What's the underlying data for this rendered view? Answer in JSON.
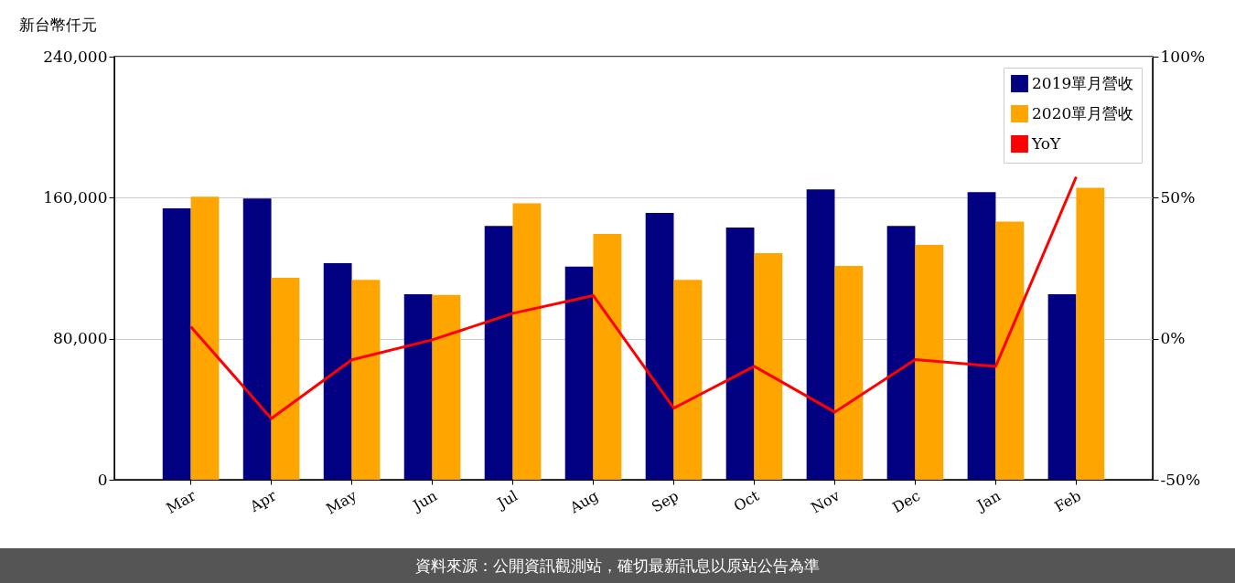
{
  "chart_data": {
    "type": "bar",
    "ylabel": "新台幣仟元",
    "categories": [
      "Mar",
      "Apr",
      "May",
      "Jun",
      "Jul",
      "Aug",
      "Sep",
      "Oct",
      "Nov",
      "Dec",
      "Jan",
      "Feb"
    ],
    "series": [
      {
        "name": "2019單月營收",
        "color": "#000080",
        "values": [
          154000,
          159500,
          122800,
          105200,
          144000,
          120900,
          151300,
          143100,
          164700,
          144000,
          163100,
          105200
        ]
      },
      {
        "name": "2020單月營收",
        "color": "#ffa500",
        "values": [
          160500,
          114600,
          113400,
          104800,
          156800,
          139400,
          113400,
          128600,
          121300,
          133200,
          146500,
          165600
        ]
      },
      {
        "name": "YoY",
        "type": "line",
        "axis": "y2",
        "color": "#ff0000",
        "values": [
          4.3,
          -28.3,
          -7.5,
          -0.4,
          9,
          15.3,
          -24.6,
          -9.8,
          -26,
          -7.4,
          -9.8,
          57.4
        ]
      }
    ],
    "ylim": [
      0,
      240000
    ],
    "yticks": [
      {
        "value": 0,
        "label": "0"
      },
      {
        "value": 80000,
        "label": "80,000"
      },
      {
        "value": 160000,
        "label": "160,000"
      },
      {
        "value": 240000,
        "label": "240,000"
      }
    ],
    "y2lim": [
      -50,
      100
    ],
    "y2ticks": [
      {
        "value": -50,
        "label": "-50%"
      },
      {
        "value": 0,
        "label": "0%"
      },
      {
        "value": 50,
        "label": "50%"
      },
      {
        "value": 100,
        "label": "100%"
      }
    ],
    "grid": "y",
    "legend": "top right",
    "annotations": [
      "資料來源：公開資訊觀測站，確切最新訊息以原站公告為準"
    ]
  }
}
